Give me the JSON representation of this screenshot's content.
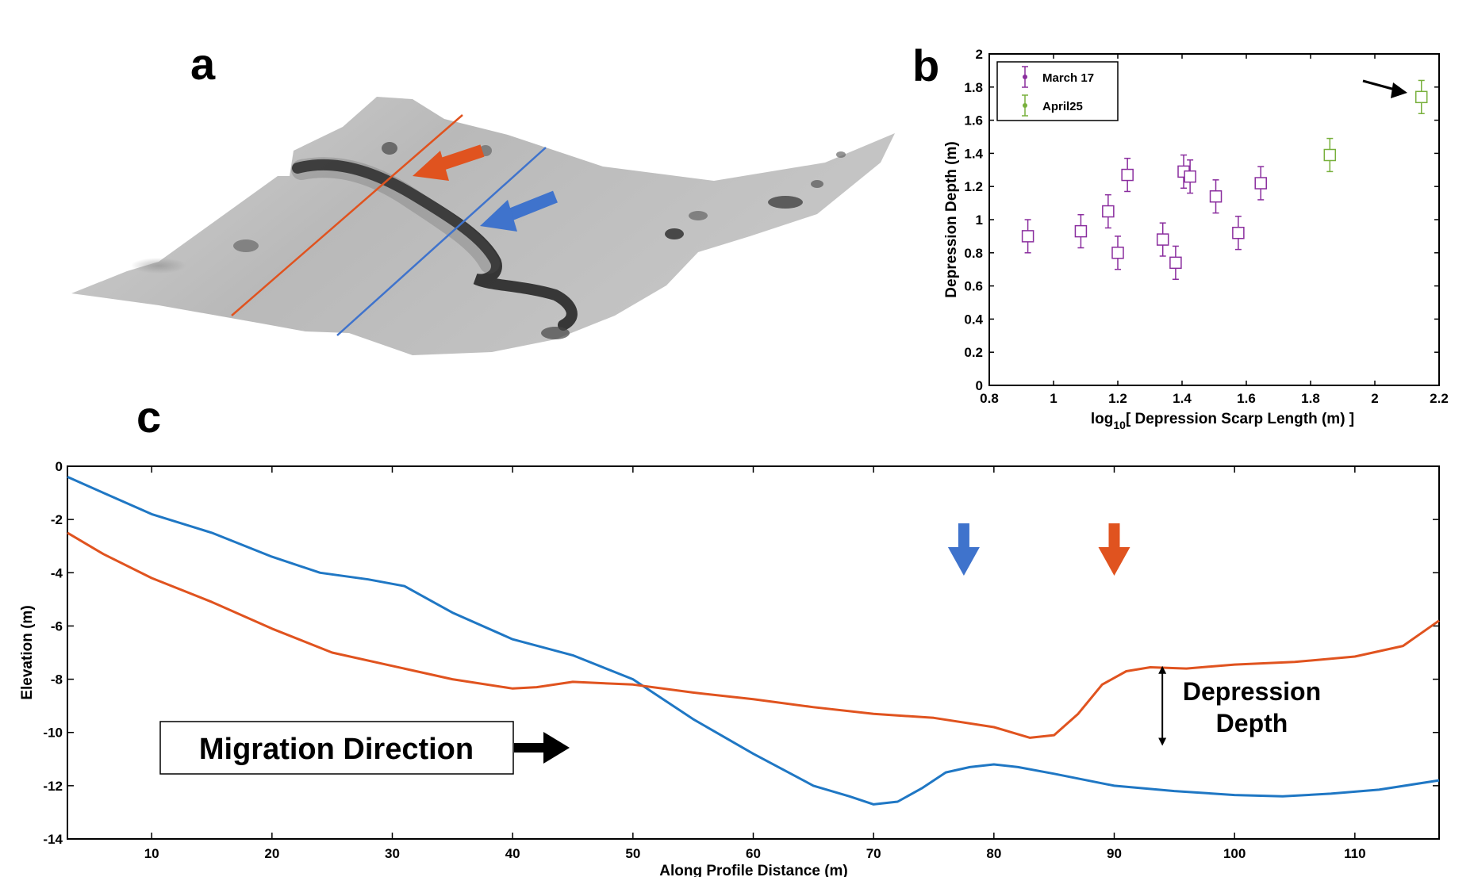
{
  "panels": {
    "a": {
      "label": "a",
      "profile_colors": {
        "orange": "#e0531f",
        "blue": "#3f73cc"
      }
    },
    "b": {
      "label": "b",
      "legend": [
        "March 17",
        "April25"
      ]
    },
    "c": {
      "label": "c",
      "annotations": {
        "depression_line1": "Depression",
        "depression_line2": "Depth",
        "migration": "Migration Direction"
      }
    }
  },
  "chart_data": [
    {
      "id": "b",
      "type": "scatter",
      "title": "",
      "xlabel_prefix": "log",
      "xlabel_sub": "10",
      "xlabel_rest": "[ Depression Scarp Length (m) ]",
      "ylabel": "Depression Depth (m)",
      "xlim": [
        0.8,
        2.2
      ],
      "ylim": [
        0,
        2
      ],
      "xticks": [
        0.8,
        1,
        1.2,
        1.4,
        1.6,
        1.8,
        2,
        2.2
      ],
      "xticklabels": [
        "0.8",
        "1",
        "1.2",
        "1.4",
        "1.6",
        "1.8",
        "2",
        "2.2"
      ],
      "yticks": [
        0,
        0.2,
        0.4,
        0.6,
        0.8,
        1,
        1.2,
        1.4,
        1.6,
        1.8,
        2
      ],
      "yticklabels": [
        "0",
        "0.2",
        "0.4",
        "0.6",
        "0.8",
        "1",
        "1.2",
        "1.4",
        "1.6",
        "1.8",
        "2"
      ],
      "error": 0.1,
      "series": [
        {
          "name": "March 17",
          "color": "#8a2d9e",
          "x": [
            0.92,
            1.085,
            1.17,
            1.2,
            1.23,
            1.34,
            1.38,
            1.405,
            1.425,
            1.505,
            1.575,
            1.645
          ],
          "y": [
            0.9,
            0.93,
            1.05,
            0.8,
            1.27,
            0.88,
            0.74,
            1.29,
            1.26,
            1.14,
            0.92,
            1.22
          ]
        },
        {
          "name": "April25",
          "color": "#78b03c",
          "x": [
            1.86,
            2.145
          ],
          "y": [
            1.39,
            1.74
          ]
        }
      ],
      "annotation": {
        "type": "arrow",
        "target": [
          2.145,
          1.74
        ]
      }
    },
    {
      "id": "c",
      "type": "line",
      "title": "",
      "xlabel": "Along Profile Distance (m)",
      "ylabel": "Elevation (m)",
      "xlim": [
        3,
        117
      ],
      "ylim": [
        -14,
        0
      ],
      "xticks": [
        10,
        20,
        30,
        40,
        50,
        60,
        70,
        80,
        90,
        100,
        110
      ],
      "xticklabels": [
        "10",
        "20",
        "30",
        "40",
        "50",
        "60",
        "70",
        "80",
        "90",
        "100",
        "110"
      ],
      "yticks": [
        0,
        -2,
        -4,
        -6,
        -8,
        -10,
        -12,
        -14
      ],
      "yticklabels": [
        "0",
        "-2",
        "-4",
        "-6",
        "-8",
        "-10",
        "-12",
        "-14"
      ],
      "series": [
        {
          "name": "Blue profile",
          "color": "#1f77c4",
          "x": [
            3,
            6,
            10,
            15,
            20,
            24,
            28,
            31,
            35,
            40,
            45,
            50,
            55,
            60,
            65,
            68,
            70,
            72,
            74,
            76,
            78,
            80,
            82,
            85,
            90,
            95,
            100,
            104,
            108,
            112,
            117
          ],
          "y": [
            -0.4,
            -1.0,
            -1.8,
            -2.5,
            -3.4,
            -4.0,
            -4.25,
            -4.5,
            -5.5,
            -6.5,
            -7.1,
            -8.0,
            -9.5,
            -10.8,
            -12.0,
            -12.4,
            -12.7,
            -12.6,
            -12.1,
            -11.5,
            -11.3,
            -11.2,
            -11.3,
            -11.55,
            -12.0,
            -12.2,
            -12.35,
            -12.4,
            -12.3,
            -12.15,
            -11.8
          ]
        },
        {
          "name": "Orange profile",
          "color": "#e0531f",
          "x": [
            3,
            6,
            10,
            15,
            20,
            25,
            30,
            35,
            40,
            42,
            45,
            50,
            55,
            60,
            65,
            70,
            75,
            80,
            83,
            85,
            87,
            89,
            91,
            93,
            96,
            100,
            105,
            110,
            114,
            117
          ],
          "y": [
            -2.5,
            -3.3,
            -4.2,
            -5.1,
            -6.1,
            -7.0,
            -7.5,
            -8.0,
            -8.35,
            -8.3,
            -8.1,
            -8.2,
            -8.5,
            -8.75,
            -9.05,
            -9.3,
            -9.45,
            -9.8,
            -10.2,
            -10.1,
            -9.3,
            -8.2,
            -7.7,
            -7.55,
            -7.6,
            -7.45,
            -7.35,
            -7.15,
            -6.75,
            -5.8
          ]
        }
      ],
      "markers": [
        {
          "name": "blue-arrow",
          "color": "#3f73cc",
          "x": 77.5
        },
        {
          "name": "orange-arrow",
          "color": "#e0531f",
          "x": 90
        }
      ],
      "depth_bracket": {
        "x": 94,
        "top": -7.5,
        "bottom": -10.5
      }
    }
  ]
}
